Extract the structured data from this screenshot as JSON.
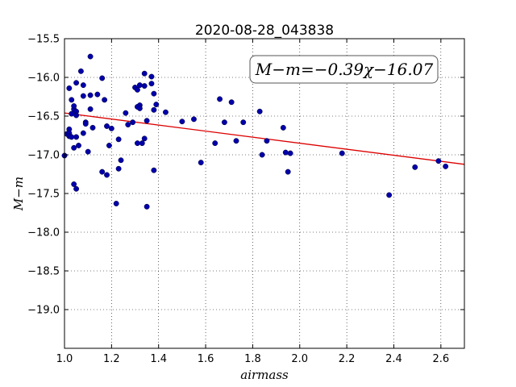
{
  "chart_data": {
    "type": "scatter",
    "title": "2020-08-28_043838",
    "xlabel": "airmass",
    "ylabel": "M−m",
    "xlim": [
      1.0,
      2.7
    ],
    "ylim": [
      -19.5,
      -15.5
    ],
    "y_inverted": true,
    "grid": true,
    "x_ticks": [
      "1.0",
      "1.2",
      "1.4",
      "1.6",
      "1.8",
      "2.0",
      "2.2",
      "2.4",
      "2.6"
    ],
    "y_ticks": [
      "−15.5",
      "−16.0",
      "−16.5",
      "−17.0",
      "−17.5",
      "−18.0",
      "−18.5",
      "−19.0"
    ],
    "annotation": "M−m=−0.39χ−16.07",
    "point_color": "#0000aa",
    "fit_color": "#dd0000",
    "fit": {
      "slope": -0.39,
      "intercept": -16.07
    },
    "points": [
      [
        1.0,
        -17.01
      ],
      [
        1.01,
        -16.73
      ],
      [
        1.02,
        -16.67
      ],
      [
        1.02,
        -16.72
      ],
      [
        1.02,
        -16.76
      ],
      [
        1.02,
        -16.14
      ],
      [
        1.03,
        -16.29
      ],
      [
        1.03,
        -16.47
      ],
      [
        1.03,
        -16.77
      ],
      [
        1.04,
        -16.41
      ],
      [
        1.04,
        -16.37
      ],
      [
        1.04,
        -16.91
      ],
      [
        1.05,
        -16.77
      ],
      [
        1.05,
        -16.07
      ],
      [
        1.05,
        -16.44
      ],
      [
        1.05,
        -16.49
      ],
      [
        1.04,
        -17.38
      ],
      [
        1.05,
        -17.44
      ],
      [
        1.06,
        -16.88
      ],
      [
        1.07,
        -15.92
      ],
      [
        1.08,
        -16.1
      ],
      [
        1.08,
        -16.24
      ],
      [
        1.08,
        -16.72
      ],
      [
        1.09,
        -16.58
      ],
      [
        1.09,
        -16.6
      ],
      [
        1.1,
        -16.96
      ],
      [
        1.11,
        -15.73
      ],
      [
        1.11,
        -16.23
      ],
      [
        1.11,
        -16.41
      ],
      [
        1.12,
        -16.65
      ],
      [
        1.14,
        -16.22
      ],
      [
        1.16,
        -16.01
      ],
      [
        1.16,
        -17.22
      ],
      [
        1.17,
        -16.29
      ],
      [
        1.18,
        -16.63
      ],
      [
        1.18,
        -17.26
      ],
      [
        1.19,
        -16.88
      ],
      [
        1.2,
        -16.66
      ],
      [
        1.22,
        -17.63
      ],
      [
        1.23,
        -16.8
      ],
      [
        1.23,
        -17.18
      ],
      [
        1.24,
        -17.07
      ],
      [
        1.26,
        -16.46
      ],
      [
        1.27,
        -16.61
      ],
      [
        1.29,
        -16.58
      ],
      [
        1.3,
        -16.13
      ],
      [
        1.31,
        -16.16
      ],
      [
        1.31,
        -16.38
      ],
      [
        1.31,
        -16.85
      ],
      [
        1.32,
        -16.36
      ],
      [
        1.32,
        -16.4
      ],
      [
        1.32,
        -16.1
      ],
      [
        1.33,
        -16.85
      ],
      [
        1.34,
        -16.79
      ],
      [
        1.34,
        -15.95
      ],
      [
        1.34,
        -16.11
      ],
      [
        1.35,
        -16.56
      ],
      [
        1.35,
        -17.67
      ],
      [
        1.37,
        -15.99
      ],
      [
        1.37,
        -16.08
      ],
      [
        1.38,
        -16.21
      ],
      [
        1.38,
        -16.42
      ],
      [
        1.38,
        -17.2
      ],
      [
        1.39,
        -16.35
      ],
      [
        1.43,
        -16.45
      ],
      [
        1.5,
        -16.57
      ],
      [
        1.55,
        -16.54
      ],
      [
        1.58,
        -17.1
      ],
      [
        1.64,
        -16.85
      ],
      [
        1.66,
        -16.28
      ],
      [
        1.68,
        -16.58
      ],
      [
        1.71,
        -16.32
      ],
      [
        1.73,
        -16.82
      ],
      [
        1.76,
        -16.58
      ],
      [
        1.83,
        -16.44
      ],
      [
        1.84,
        -17.0
      ],
      [
        1.86,
        -16.82
      ],
      [
        1.93,
        -16.65
      ],
      [
        1.94,
        -16.97
      ],
      [
        1.95,
        -17.22
      ],
      [
        1.96,
        -16.98
      ],
      [
        2.18,
        -16.98
      ],
      [
        2.38,
        -17.52
      ],
      [
        2.49,
        -17.16
      ],
      [
        2.59,
        -17.08
      ],
      [
        2.62,
        -17.15
      ]
    ]
  }
}
